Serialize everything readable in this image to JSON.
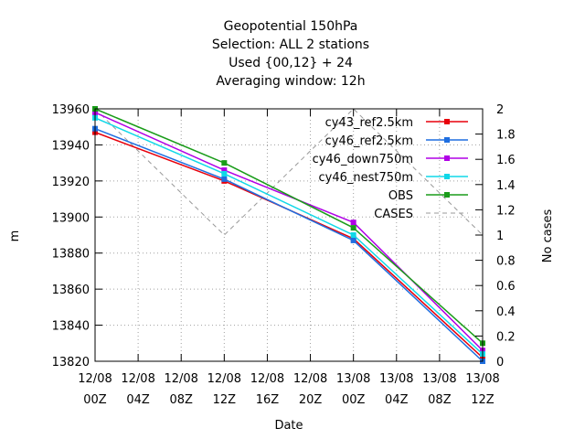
{
  "chart_data": {
    "type": "line",
    "title_lines": [
      "Geopotential 150hPa",
      "Selection: ALL      2 stations",
      "Used {00,12} + 24",
      "Averaging window: 12h"
    ],
    "xlabel": "Date",
    "ylabel": "m",
    "y2label": "No cases",
    "x_ticks": [
      {
        "top": "12/08",
        "bottom": "00Z"
      },
      {
        "top": "12/08",
        "bottom": "04Z"
      },
      {
        "top": "12/08",
        "bottom": "08Z"
      },
      {
        "top": "12/08",
        "bottom": "12Z"
      },
      {
        "top": "12/08",
        "bottom": "16Z"
      },
      {
        "top": "12/08",
        "bottom": "20Z"
      },
      {
        "top": "13/08",
        "bottom": "00Z"
      },
      {
        "top": "13/08",
        "bottom": "04Z"
      },
      {
        "top": "13/08",
        "bottom": "08Z"
      },
      {
        "top": "13/08",
        "bottom": "12Z"
      }
    ],
    "xlim_hours": [
      0,
      36
    ],
    "ylim": [
      13820,
      13960
    ],
    "y_ticks": [
      13820,
      13840,
      13860,
      13880,
      13900,
      13920,
      13940,
      13960
    ],
    "y2lim": [
      0,
      2
    ],
    "y2_ticks": [
      "0",
      "0.2",
      "0.4",
      "0.6",
      "0.8",
      "1",
      "1.2",
      "1.4",
      "1.6",
      "1.8",
      "2"
    ],
    "grid": true,
    "legend_position": "top-right",
    "series": [
      {
        "name": "cy43_ref2.5km",
        "color": "#e8000b",
        "x_hours": [
          0,
          12,
          24,
          36
        ],
        "values": [
          13947,
          13920,
          13888,
          13822
        ]
      },
      {
        "name": "cy46_ref2.5km",
        "color": "#1f6fe0",
        "x_hours": [
          0,
          12,
          24,
          36
        ],
        "values": [
          13949,
          13921,
          13887,
          13820
        ]
      },
      {
        "name": "cy46_down750m",
        "color": "#b000e6",
        "x_hours": [
          0,
          12,
          24,
          36
        ],
        "values": [
          13958,
          13926,
          13897,
          13826
        ]
      },
      {
        "name": "cy46_nest750m",
        "color": "#10d8e8",
        "x_hours": [
          0,
          12,
          24,
          36
        ],
        "values": [
          13955,
          13924,
          13890,
          13824
        ]
      },
      {
        "name": "OBS",
        "color": "#1a9c1a",
        "x_hours": [
          0,
          12,
          24,
          36
        ],
        "values": [
          13960,
          13930,
          13894,
          13830
        ]
      }
    ],
    "cases": {
      "name": "CASES",
      "color": "#999999",
      "x_hours": [
        0,
        12,
        24,
        36
      ],
      "values": [
        2,
        1,
        2,
        1
      ]
    }
  }
}
